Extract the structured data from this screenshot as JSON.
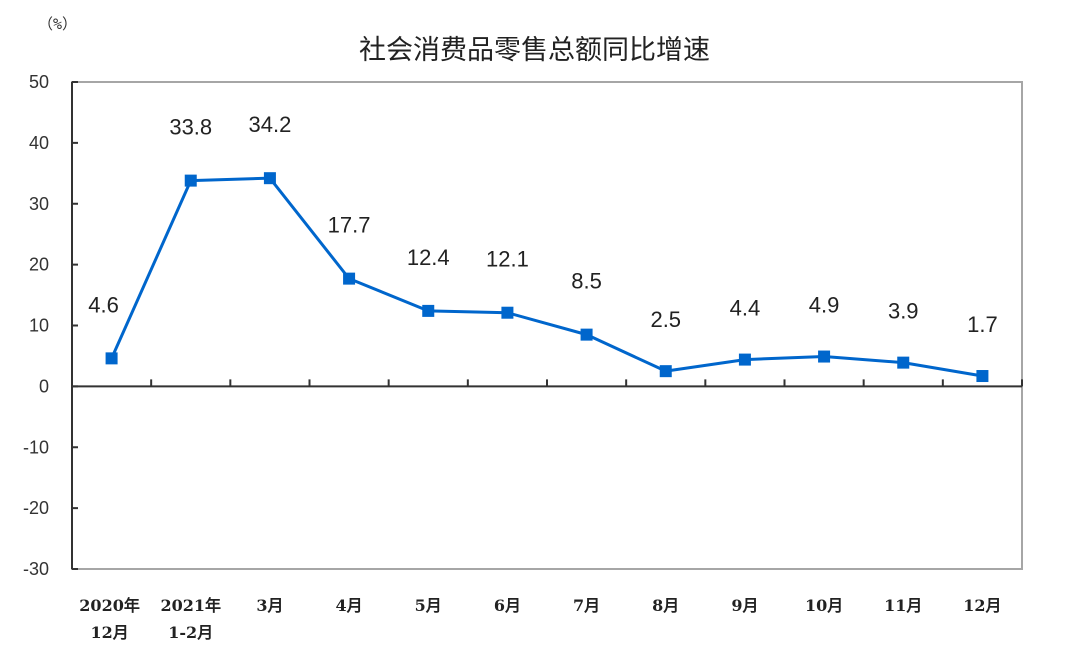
{
  "chart_data": {
    "type": "line",
    "title": "社会消费品零售总额同比增速",
    "unit_label": "（%）",
    "xlabel": "",
    "ylabel": "%",
    "ylim": [
      -30,
      50
    ],
    "yticks": [
      50,
      40,
      30,
      20,
      10,
      0,
      -10,
      -20,
      -30
    ],
    "grid": false,
    "legend": null,
    "categories": [
      [
        "2020年",
        "12月"
      ],
      [
        "2021年",
        "1-2月"
      ],
      [
        "3月"
      ],
      [
        "4月"
      ],
      [
        "5月"
      ],
      [
        "6月"
      ],
      [
        "7月"
      ],
      [
        "8月"
      ],
      [
        "9月"
      ],
      [
        "10月"
      ],
      [
        "11月"
      ],
      [
        "12月"
      ]
    ],
    "series": [
      {
        "name": "社会消费品零售总额同比增速",
        "color": "#0066CC",
        "marker": "square",
        "values": [
          4.6,
          33.8,
          34.2,
          17.7,
          12.4,
          12.1,
          8.5,
          2.5,
          4.4,
          4.9,
          3.9,
          1.7
        ],
        "data_labels": [
          "4.6",
          "33.8",
          "34.2",
          "17.7",
          "12.4",
          "12.1",
          "8.5",
          "2.5",
          "4.4",
          "4.9",
          "3.9",
          "1.7"
        ]
      }
    ]
  }
}
